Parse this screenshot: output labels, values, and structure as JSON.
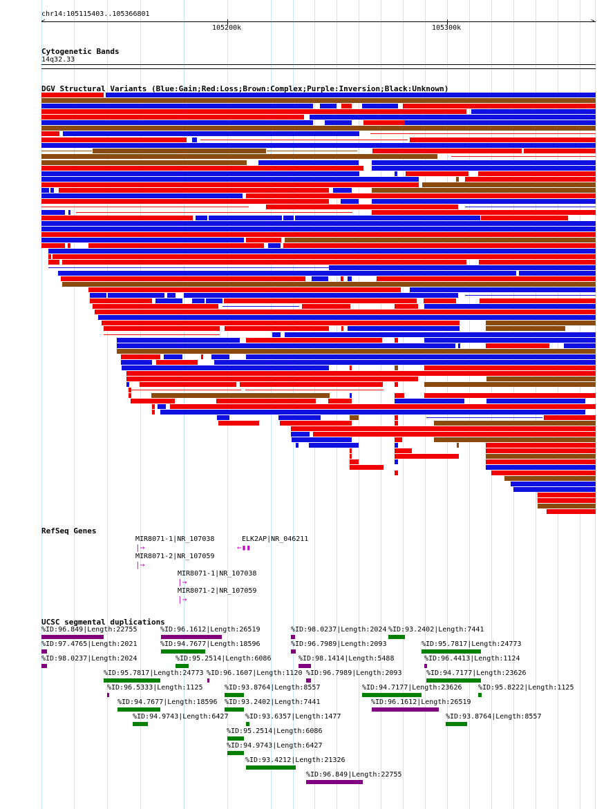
{
  "ruler": {
    "position_label": "chr14:105115403..105366801",
    "ticks": [
      "105200k",
      "105300k"
    ]
  },
  "cytoband": {
    "title": "Cytogenetic Bands",
    "band": "14q32.33"
  },
  "dgv": {
    "title": "DGV Structural Variants (Blue:Gain;Red:Loss;Brown:Complex;Purple:Inversion;Black:Unknown)",
    "colors": {
      "gain": "#1010e0",
      "loss": "#f00000",
      "complex": "#8b4a10",
      "inversion": "#800080",
      "unknown": "#000000"
    }
  },
  "refseq": {
    "title": "RefSeq Genes",
    "genes": [
      {
        "label": "MIR8071-1|NR_107038"
      },
      {
        "label": "ELK2AP|NR_046211"
      },
      {
        "label": "MIR8071-2|NR_107059"
      },
      {
        "label": "MIR8071-1|NR_107038"
      },
      {
        "label": "MIR8071-2|NR_107059"
      }
    ]
  },
  "segdups": {
    "title": "UCSC segmental duplications",
    "items": [
      {
        "label": "%ID:96.849|Length:22755",
        "color": "#800080"
      },
      {
        "label": "%ID:96.1612|Length:26519",
        "color": "#800080"
      },
      {
        "label": "%ID:98.0237|Length:2024",
        "color": "#800080"
      },
      {
        "label": "%ID:93.2402|Length:7441",
        "color": "#008000"
      },
      {
        "label": "%ID:97.4765|Length:2021",
        "color": "#800080"
      },
      {
        "label": "%ID:94.7677|Length:18596",
        "color": "#008000"
      },
      {
        "label": "%ID:96.7989|Length:2093",
        "color": "#800080"
      },
      {
        "label": "%ID:95.7817|Length:24773",
        "color": "#008000"
      },
      {
        "label": "%ID:98.0237|Length:2024",
        "color": "#800080"
      },
      {
        "label": "%ID:95.2514|Length:6086",
        "color": "#008000"
      },
      {
        "label": "%ID:98.1414|Length:5488",
        "color": "#800080"
      },
      {
        "label": "%ID:96.4413|Length:1124",
        "color": "#800080"
      },
      {
        "label": "%ID:95.7817|Length:24773",
        "color": "#008000"
      },
      {
        "label": "%ID:96.1607|Length:1120",
        "color": "#800080"
      },
      {
        "label": "%ID:96.7989|Length:2093",
        "color": "#800080"
      },
      {
        "label": "%ID:94.7177|Length:23626",
        "color": "#008000"
      },
      {
        "label": "%ID:96.5333|Length:1125",
        "color": "#800080"
      },
      {
        "label": "%ID:93.8764|Length:8557",
        "color": "#008000"
      },
      {
        "label": "%ID:94.7177|Length:23626",
        "color": "#008000"
      },
      {
        "label": "%ID:95.8222|Length:1125",
        "color": "#008000"
      },
      {
        "label": "%ID:94.7677|Length:18596",
        "color": "#008000"
      },
      {
        "label": "%ID:93.2402|Length:7441",
        "color": "#008000"
      },
      {
        "label": "%ID:96.1612|Length:26519",
        "color": "#800080"
      },
      {
        "label": "%ID:94.9743|Length:6427",
        "color": "#008000"
      },
      {
        "label": "%ID:93.6357|Length:1477",
        "color": "#008000"
      },
      {
        "label": "%ID:93.8764|Length:8557",
        "color": "#008000"
      },
      {
        "label": "%ID:95.2514|Length:6086",
        "color": "#008000"
      },
      {
        "label": "%ID:94.9743|Length:6427",
        "color": "#008000"
      },
      {
        "label": "%ID:93.4212|Length:21326",
        "color": "#008000"
      },
      {
        "label": "%ID:96.849|Length:22755",
        "color": "#800080"
      }
    ]
  }
}
